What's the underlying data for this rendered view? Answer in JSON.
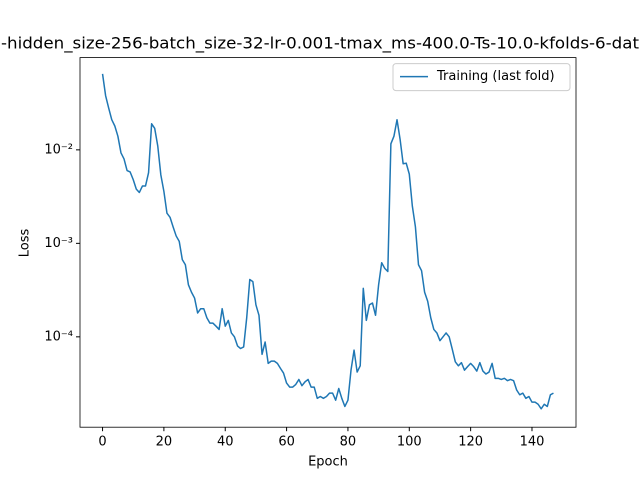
{
  "chart_data": {
    "type": "line",
    "title": "-hidden_size-256-batch_size-32-lr-0.001-tmax_ms-400.0-Ts-10.0-kfolds-6-dat",
    "xlabel": "Epoch",
    "ylabel": "Loss",
    "x": [
      0,
      1,
      2,
      3,
      4,
      5,
      6,
      7,
      8,
      9,
      10,
      11,
      12,
      13,
      14,
      15,
      16,
      17,
      18,
      19,
      20,
      21,
      22,
      23,
      24,
      25,
      26,
      27,
      28,
      29,
      30,
      31,
      32,
      33,
      34,
      35,
      36,
      37,
      38,
      39,
      40,
      41,
      42,
      43,
      44,
      45,
      46,
      47,
      48,
      49,
      50,
      51,
      52,
      53,
      54,
      55,
      56,
      57,
      58,
      59,
      60,
      61,
      62,
      63,
      64,
      65,
      66,
      67,
      68,
      69,
      70,
      71,
      72,
      73,
      74,
      75,
      76,
      77,
      78,
      79,
      80,
      81,
      82,
      83,
      84,
      85,
      86,
      87,
      88,
      89,
      90,
      91,
      92,
      93,
      94,
      95,
      96,
      97,
      98,
      99,
      100,
      101,
      102,
      103,
      104,
      105,
      106,
      107,
      108,
      109,
      110,
      111,
      112,
      113,
      114,
      115,
      116,
      117,
      118,
      119,
      120,
      121,
      122,
      123,
      124,
      125,
      126,
      127,
      128,
      129,
      130,
      131,
      132,
      133,
      134,
      135,
      136,
      137,
      138,
      139,
      140,
      141,
      142,
      143,
      144,
      145,
      146,
      147
    ],
    "series": [
      {
        "name": "Training (last fold)",
        "color": "#1f77b4",
        "values": [
          0.065,
          0.038,
          0.028,
          0.021,
          0.018,
          0.014,
          0.0093,
          0.008,
          0.006,
          0.0058,
          0.0048,
          0.0038,
          0.0035,
          0.0041,
          0.0041,
          0.0057,
          0.019,
          0.017,
          0.011,
          0.0054,
          0.0036,
          0.0021,
          0.0019,
          0.0015,
          0.0012,
          0.00105,
          0.00067,
          0.00059,
          0.00036,
          0.0003,
          0.00026,
          0.00018,
          0.0002,
          0.0002,
          0.00016,
          0.00014,
          0.00014,
          0.00013,
          0.00012,
          0.0002,
          0.00013,
          0.00015,
          0.00011,
          0.0001,
          8e-05,
          7.5e-05,
          7.8e-05,
          0.00016,
          0.00041,
          0.00039,
          0.00022,
          0.00017,
          6.5e-05,
          8.8e-05,
          5.2e-05,
          5.5e-05,
          5.5e-05,
          5.2e-05,
          4.6e-05,
          4.1e-05,
          3.2e-05,
          2.9e-05,
          2.9e-05,
          3.1e-05,
          3.5e-05,
          3e-05,
          3.3e-05,
          3.5e-05,
          2.9e-05,
          2.9e-05,
          2.2e-05,
          2.3e-05,
          2.2e-05,
          2.3e-05,
          2.5e-05,
          2.5e-05,
          2.1e-05,
          2.8e-05,
          2.2e-05,
          1.8e-05,
          2.1e-05,
          4.4e-05,
          7.2e-05,
          4.2e-05,
          4.9e-05,
          0.00033,
          0.00015,
          0.00022,
          0.00023,
          0.00017,
          0.00036,
          0.00062,
          0.00054,
          0.0005,
          0.0116,
          0.014,
          0.021,
          0.013,
          0.0071,
          0.0072,
          0.0055,
          0.0025,
          0.0015,
          0.00059,
          0.00051,
          0.0003,
          0.00024,
          0.00016,
          0.00012,
          0.00011,
          9.1e-05,
          0.0001,
          0.00011,
          0.0001,
          7.4e-05,
          5.4e-05,
          4.9e-05,
          5.3e-05,
          4.4e-05,
          4.8e-05,
          5.2e-05,
          4.8e-05,
          4.3e-05,
          5.3e-05,
          4.3e-05,
          4e-05,
          4.2e-05,
          5.2e-05,
          3.6e-05,
          3.6e-05,
          3.5e-05,
          3.6e-05,
          3.4e-05,
          3.5e-05,
          3.4e-05,
          2.7e-05,
          2.4e-05,
          2.5e-05,
          2.2e-05,
          2.3e-05,
          2e-05,
          2e-05,
          1.9e-05,
          1.7e-05,
          1.9e-05,
          1.8e-05,
          2.4e-05,
          2.5e-05
        ]
      }
    ],
    "xlim": [
      -7.35,
      154.35
    ],
    "xticks": [
      0,
      20,
      40,
      60,
      80,
      100,
      120,
      140
    ],
    "ylim": [
      1.08e-05,
      0.097
    ],
    "log_y": true,
    "yticks": [
      {
        "value": 0.0001,
        "label": "10⁻⁴"
      },
      {
        "value": 0.001,
        "label": "10⁻³"
      },
      {
        "value": 0.01,
        "label": "10⁻²"
      }
    ],
    "legend": "upper right"
  }
}
